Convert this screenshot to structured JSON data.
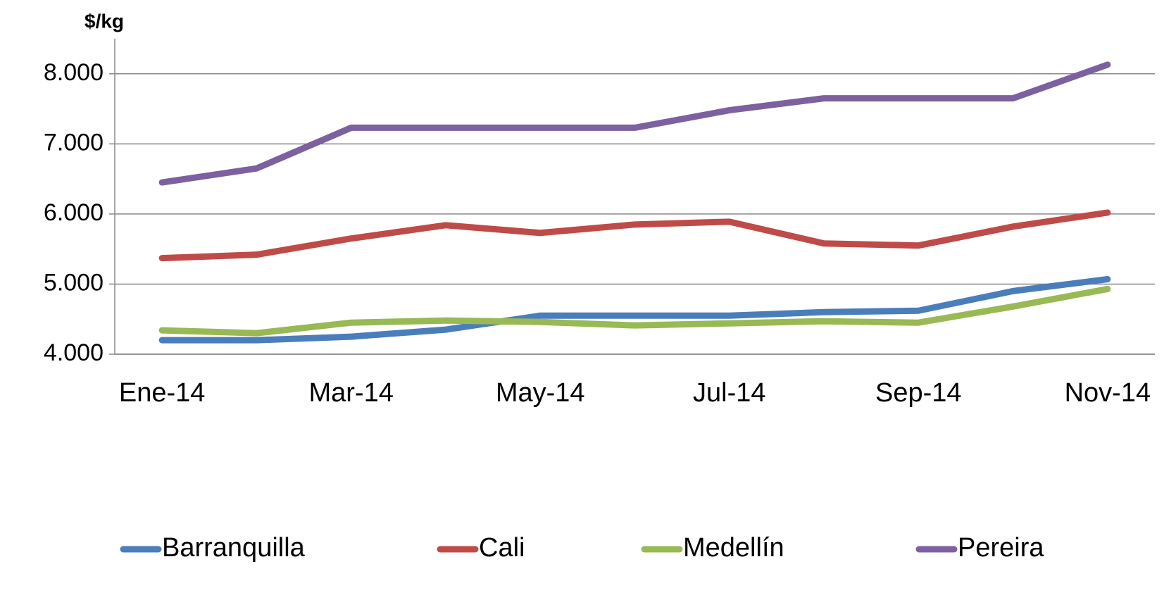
{
  "chart_data": {
    "type": "line",
    "y_axis_title": "$/kg",
    "categories": [
      "Ene-14",
      null,
      "Mar-14",
      null,
      "May-14",
      null,
      "Jul-14",
      null,
      "Sep-14",
      null,
      "Nov-14"
    ],
    "series": [
      {
        "name": "Barranquilla",
        "color": "#4a7ebb",
        "values": [
          4200,
          4200,
          4250,
          4350,
          4550,
          4550,
          4550,
          4600,
          4620,
          4900,
          5070
        ]
      },
      {
        "name": "Cali",
        "color": "#be4b48",
        "values": [
          5370,
          5420,
          5650,
          5840,
          5730,
          5850,
          5890,
          5580,
          5550,
          5820,
          6020
        ]
      },
      {
        "name": "Medellín",
        "color": "#98b954",
        "values": [
          4340,
          4300,
          4450,
          4480,
          4460,
          4410,
          4440,
          4470,
          4450,
          4680,
          4930
        ]
      },
      {
        "name": "Pereira",
        "color": "#7d60a0",
        "values": [
          6450,
          6650,
          7230,
          7230,
          7230,
          7230,
          7480,
          7650,
          7650,
          7650,
          8130
        ]
      }
    ],
    "ylim": [
      4000,
      8500
    ],
    "yticks": [
      {
        "value": 4000,
        "label": "4.000"
      },
      {
        "value": 5000,
        "label": "5.000"
      },
      {
        "value": 6000,
        "label": "6.000"
      },
      {
        "value": 7000,
        "label": "7.000"
      },
      {
        "value": 8000,
        "label": "8.000"
      }
    ],
    "grid": true,
    "legend": "bottom"
  }
}
